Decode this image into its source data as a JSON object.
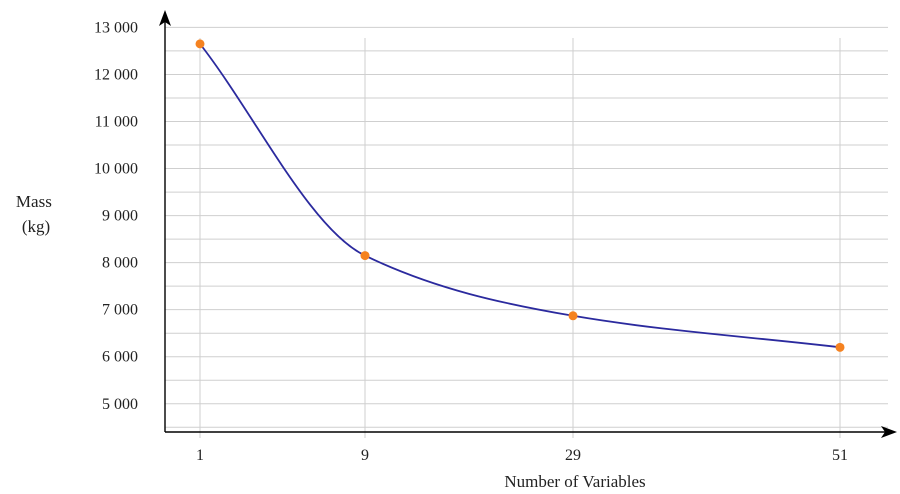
{
  "chart_data": {
    "type": "line",
    "xlabel": "Number of Variables",
    "ylabel_lines": [
      "Mass",
      "(kg)"
    ],
    "x_categories": [
      "1",
      "9",
      "29",
      "51"
    ],
    "x_positions": [
      1,
      9,
      29,
      51
    ],
    "ylim": [
      4400,
      13200
    ],
    "y_ticks": [
      5000,
      6000,
      7000,
      8000,
      9000,
      10000,
      11000,
      12000,
      13000
    ],
    "y_tick_labels": [
      "5 000",
      "6 000",
      "7 000",
      "8 000",
      "9 000",
      "10 000",
      "11 000",
      "12 000",
      "13 000"
    ],
    "y_minor_step": 500,
    "grid": true,
    "series": [
      {
        "values": [
          12650,
          8150,
          6870,
          6200
        ],
        "line_color": "#2b2a9e",
        "marker_color": "#f58220"
      }
    ]
  }
}
